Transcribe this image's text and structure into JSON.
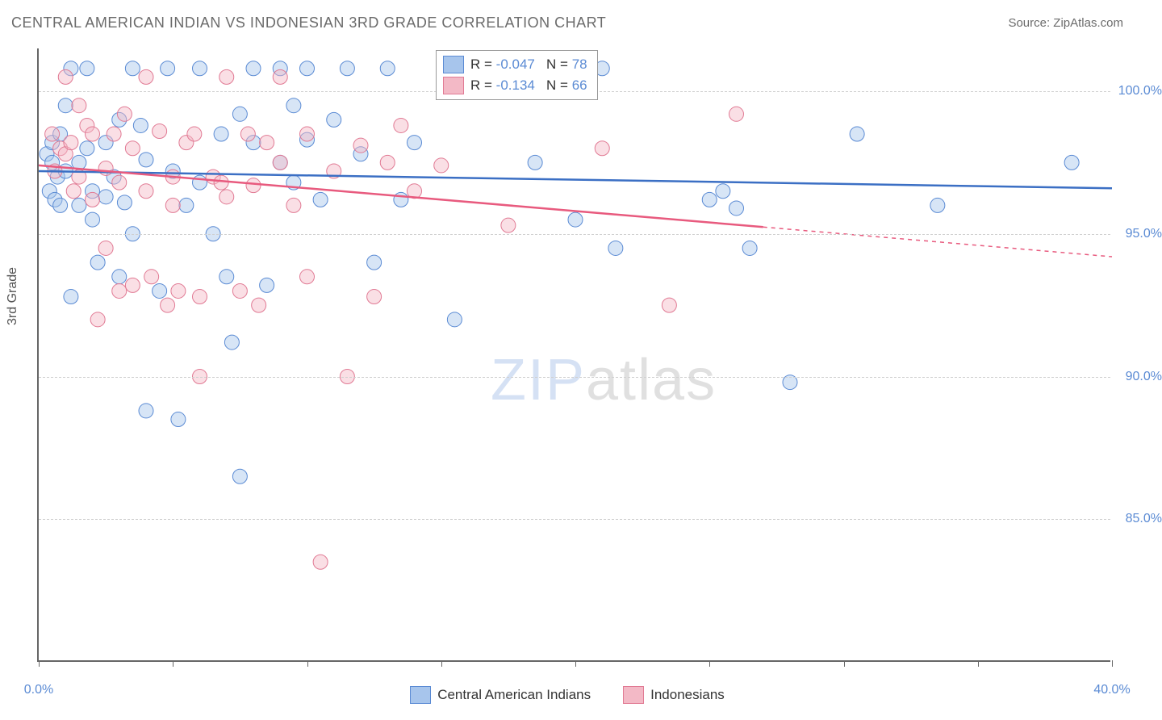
{
  "title": "CENTRAL AMERICAN INDIAN VS INDONESIAN 3RD GRADE CORRELATION CHART",
  "source": "Source: ZipAtlas.com",
  "y_axis_title": "3rd Grade",
  "watermark": {
    "part1": "ZIP",
    "part2": "atlas"
  },
  "chart": {
    "type": "scatter",
    "xlim": [
      0,
      40
    ],
    "ylim": [
      80,
      101.5
    ],
    "x_ticks": [
      0,
      5,
      10,
      15,
      20,
      25,
      30,
      35,
      40
    ],
    "x_tick_labels": {
      "0": "0.0%",
      "40": "40.0%"
    },
    "y_ticks": [
      85,
      90,
      95,
      100
    ],
    "y_tick_labels": [
      "85.0%",
      "90.0%",
      "95.0%",
      "100.0%"
    ],
    "background_color": "#ffffff",
    "grid_color": "#d0d0d0",
    "axis_color": "#666666",
    "tick_label_color": "#5b8bd4",
    "marker_radius": 9,
    "marker_opacity": 0.45,
    "series": [
      {
        "name": "Central American Indians",
        "color_fill": "#a7c5ec",
        "color_stroke": "#5b8bd4",
        "r_value": "-0.047",
        "n_value": "78",
        "trend": {
          "x1": 0,
          "y1": 97.2,
          "x2": 40,
          "y2": 96.6,
          "solid_until_x": 40,
          "color": "#3b6fc4",
          "width": 2.5
        },
        "points": [
          [
            0.3,
            97.8
          ],
          [
            0.4,
            96.5
          ],
          [
            0.5,
            97.5
          ],
          [
            0.5,
            98.2
          ],
          [
            0.6,
            96.2
          ],
          [
            0.7,
            97.0
          ],
          [
            0.8,
            96.0
          ],
          [
            0.8,
            98.5
          ],
          [
            1.0,
            97.2
          ],
          [
            1.0,
            99.5
          ],
          [
            1.2,
            92.8
          ],
          [
            1.2,
            100.8
          ],
          [
            1.5,
            97.5
          ],
          [
            1.5,
            96.0
          ],
          [
            1.8,
            98.0
          ],
          [
            1.8,
            100.8
          ],
          [
            2.0,
            95.5
          ],
          [
            2.0,
            96.5
          ],
          [
            2.2,
            94.0
          ],
          [
            2.5,
            98.2
          ],
          [
            2.5,
            96.3
          ],
          [
            2.8,
            97.0
          ],
          [
            3.0,
            99.0
          ],
          [
            3.0,
            93.5
          ],
          [
            3.2,
            96.1
          ],
          [
            3.5,
            95.0
          ],
          [
            3.5,
            100.8
          ],
          [
            3.8,
            98.8
          ],
          [
            4.0,
            97.6
          ],
          [
            4.0,
            88.8
          ],
          [
            4.5,
            93.0
          ],
          [
            4.8,
            100.8
          ],
          [
            5.0,
            97.2
          ],
          [
            5.2,
            88.5
          ],
          [
            5.5,
            96.0
          ],
          [
            6.0,
            100.8
          ],
          [
            6.0,
            96.8
          ],
          [
            6.5,
            95.0
          ],
          [
            6.8,
            98.5
          ],
          [
            7.0,
            93.5
          ],
          [
            7.2,
            91.2
          ],
          [
            7.5,
            99.2
          ],
          [
            7.5,
            86.5
          ],
          [
            8.0,
            98.2
          ],
          [
            8.0,
            100.8
          ],
          [
            8.5,
            93.2
          ],
          [
            9.0,
            97.5
          ],
          [
            9.0,
            100.8
          ],
          [
            9.5,
            96.8
          ],
          [
            9.5,
            99.5
          ],
          [
            10.0,
            98.3
          ],
          [
            10.0,
            100.8
          ],
          [
            10.5,
            96.2
          ],
          [
            11.0,
            99.0
          ],
          [
            11.5,
            100.8
          ],
          [
            12.0,
            97.8
          ],
          [
            12.5,
            94.0
          ],
          [
            13.0,
            100.8
          ],
          [
            13.5,
            96.2
          ],
          [
            14.0,
            98.2
          ],
          [
            15.5,
            92.0
          ],
          [
            17.0,
            100.8
          ],
          [
            18.5,
            97.5
          ],
          [
            19.0,
            100.8
          ],
          [
            20.0,
            95.5
          ],
          [
            21.0,
            100.8
          ],
          [
            21.5,
            94.5
          ],
          [
            25.0,
            96.2
          ],
          [
            25.5,
            96.5
          ],
          [
            26.0,
            95.9
          ],
          [
            26.5,
            94.5
          ],
          [
            28.0,
            89.8
          ],
          [
            30.5,
            98.5
          ],
          [
            33.5,
            96.0
          ],
          [
            38.5,
            97.5
          ]
        ]
      },
      {
        "name": "Indonesians",
        "color_fill": "#f3b9c6",
        "color_stroke": "#e17a94",
        "r_value": "-0.134",
        "n_value": "66",
        "trend": {
          "x1": 0,
          "y1": 97.4,
          "x2": 40,
          "y2": 94.2,
          "solid_until_x": 27,
          "color": "#e85a7e",
          "width": 2.5
        },
        "points": [
          [
            0.5,
            98.5
          ],
          [
            0.6,
            97.2
          ],
          [
            0.8,
            98.0
          ],
          [
            1.0,
            97.8
          ],
          [
            1.0,
            100.5
          ],
          [
            1.2,
            98.2
          ],
          [
            1.3,
            96.5
          ],
          [
            1.5,
            97.0
          ],
          [
            1.5,
            99.5
          ],
          [
            1.8,
            98.8
          ],
          [
            2.0,
            98.5
          ],
          [
            2.0,
            96.2
          ],
          [
            2.2,
            92.0
          ],
          [
            2.5,
            97.3
          ],
          [
            2.5,
            94.5
          ],
          [
            2.8,
            98.5
          ],
          [
            3.0,
            96.8
          ],
          [
            3.0,
            93.0
          ],
          [
            3.2,
            99.2
          ],
          [
            3.5,
            98.0
          ],
          [
            3.5,
            93.2
          ],
          [
            4.0,
            96.5
          ],
          [
            4.0,
            100.5
          ],
          [
            4.2,
            93.5
          ],
          [
            4.5,
            98.6
          ],
          [
            4.8,
            92.5
          ],
          [
            5.0,
            97.0
          ],
          [
            5.0,
            96.0
          ],
          [
            5.2,
            93.0
          ],
          [
            5.5,
            98.2
          ],
          [
            5.8,
            98.5
          ],
          [
            6.0,
            92.8
          ],
          [
            6.0,
            90.0
          ],
          [
            6.5,
            97.0
          ],
          [
            6.8,
            96.8
          ],
          [
            7.0,
            96.3
          ],
          [
            7.0,
            100.5
          ],
          [
            7.5,
            93.0
          ],
          [
            7.8,
            98.5
          ],
          [
            8.0,
            96.7
          ],
          [
            8.2,
            92.5
          ],
          [
            8.5,
            98.2
          ],
          [
            9.0,
            97.5
          ],
          [
            9.0,
            100.5
          ],
          [
            9.5,
            96.0
          ],
          [
            10.0,
            98.5
          ],
          [
            10.0,
            93.5
          ],
          [
            10.5,
            83.5
          ],
          [
            11.0,
            97.2
          ],
          [
            11.5,
            90.0
          ],
          [
            12.0,
            98.1
          ],
          [
            12.5,
            92.8
          ],
          [
            13.0,
            97.5
          ],
          [
            13.5,
            98.8
          ],
          [
            14.0,
            96.5
          ],
          [
            15.0,
            97.4
          ],
          [
            16.0,
            100.5
          ],
          [
            17.0,
            100.5
          ],
          [
            17.5,
            95.3
          ],
          [
            21.0,
            98.0
          ],
          [
            23.5,
            92.5
          ],
          [
            26.0,
            99.2
          ]
        ]
      }
    ]
  },
  "legend_box": {
    "r_label": "R =",
    "n_label": "N ="
  },
  "bottom_legend": {
    "items": [
      "Central American Indians",
      "Indonesians"
    ]
  }
}
